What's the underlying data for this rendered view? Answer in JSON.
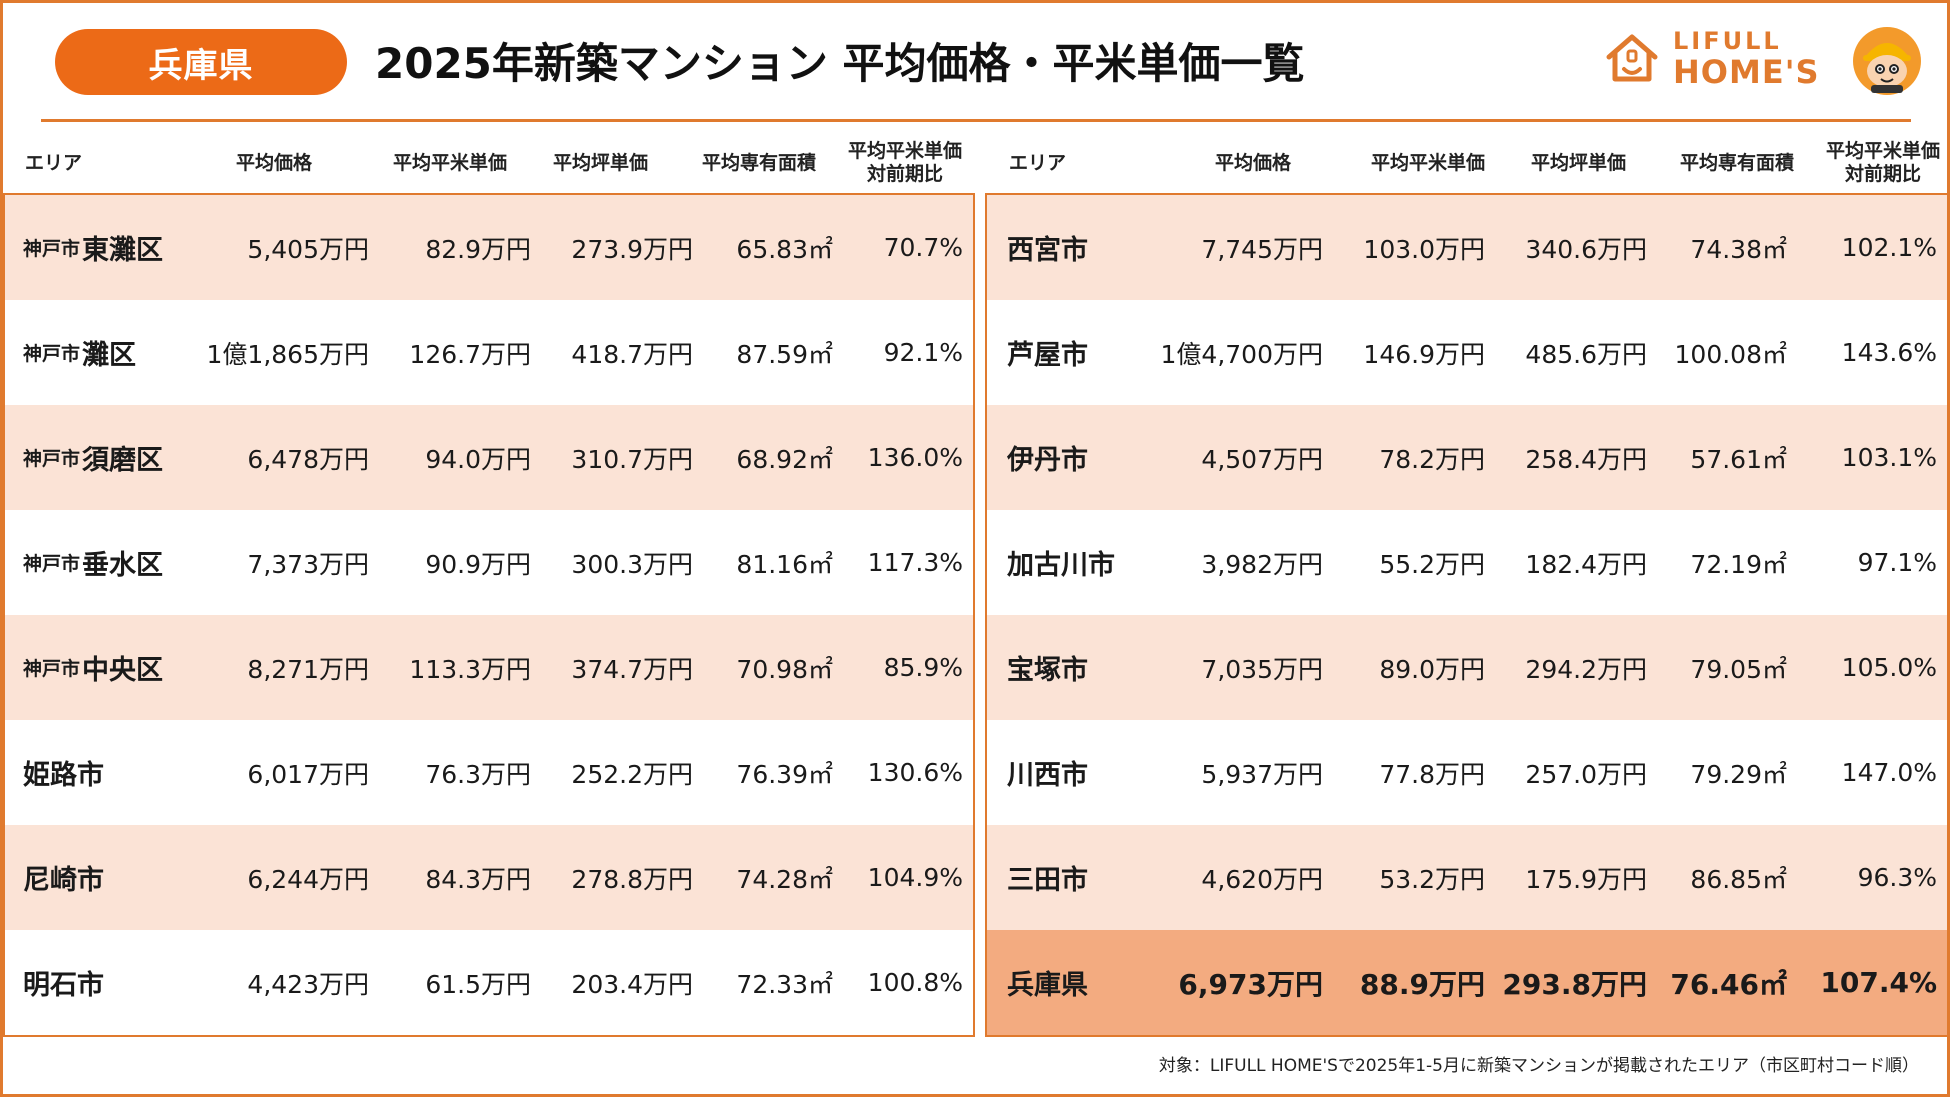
{
  "header": {
    "badge": "兵庫県",
    "title": "2025年新築マンション 平均価格・平米単価一覧",
    "logo_line1": "LIFULL",
    "logo_line2": "HOME'S"
  },
  "columns": [
    "エリア",
    "平均価格",
    "平均平米単価",
    "平均坪単価",
    "平均専有面積",
    "平均平米単価\n対前期比"
  ],
  "left_rows": [
    {
      "prefix": "神戸市",
      "area": "東灘区",
      "price": "5,405万円",
      "sqm": "82.9万円",
      "tsubo": "273.9万円",
      "size": "65.83㎡",
      "ratio": "70.7%",
      "shade": true
    },
    {
      "prefix": "神戸市",
      "area": "灘区",
      "price": "1億1,865万円",
      "sqm": "126.7万円",
      "tsubo": "418.7万円",
      "size": "87.59㎡",
      "ratio": "92.1%",
      "shade": false
    },
    {
      "prefix": "神戸市",
      "area": "須磨区",
      "price": "6,478万円",
      "sqm": "94.0万円",
      "tsubo": "310.7万円",
      "size": "68.92㎡",
      "ratio": "136.0%",
      "shade": true
    },
    {
      "prefix": "神戸市",
      "area": "垂水区",
      "price": "7,373万円",
      "sqm": "90.9万円",
      "tsubo": "300.3万円",
      "size": "81.16㎡",
      "ratio": "117.3%",
      "shade": false
    },
    {
      "prefix": "神戸市",
      "area": "中央区",
      "price": "8,271万円",
      "sqm": "113.3万円",
      "tsubo": "374.7万円",
      "size": "70.98㎡",
      "ratio": "85.9%",
      "shade": true
    },
    {
      "prefix": "",
      "area": "姫路市",
      "price": "6,017万円",
      "sqm": "76.3万円",
      "tsubo": "252.2万円",
      "size": "76.39㎡",
      "ratio": "130.6%",
      "shade": false
    },
    {
      "prefix": "",
      "area": "尼崎市",
      "price": "6,244万円",
      "sqm": "84.3万円",
      "tsubo": "278.8万円",
      "size": "74.28㎡",
      "ratio": "104.9%",
      "shade": true
    },
    {
      "prefix": "",
      "area": "明石市",
      "price": "4,423万円",
      "sqm": "61.5万円",
      "tsubo": "203.4万円",
      "size": "72.33㎡",
      "ratio": "100.8%",
      "shade": false
    }
  ],
  "right_rows": [
    {
      "area": "西宮市",
      "price": "7,745万円",
      "sqm": "103.0万円",
      "tsubo": "340.6万円",
      "size": "74.38㎡",
      "ratio": "102.1%",
      "shade": true
    },
    {
      "area": "芦屋市",
      "price": "1億4,700万円",
      "sqm": "146.9万円",
      "tsubo": "485.6万円",
      "size": "100.08㎡",
      "ratio": "143.6%",
      "shade": false
    },
    {
      "area": "伊丹市",
      "price": "4,507万円",
      "sqm": "78.2万円",
      "tsubo": "258.4万円",
      "size": "57.61㎡",
      "ratio": "103.1%",
      "shade": true
    },
    {
      "area": "加古川市",
      "price": "3,982万円",
      "sqm": "55.2万円",
      "tsubo": "182.4万円",
      "size": "72.19㎡",
      "ratio": "97.1%",
      "shade": false
    },
    {
      "area": "宝塚市",
      "price": "7,035万円",
      "sqm": "89.0万円",
      "tsubo": "294.2万円",
      "size": "79.05㎡",
      "ratio": "105.0%",
      "shade": true
    },
    {
      "area": "川西市",
      "price": "5,937万円",
      "sqm": "77.8万円",
      "tsubo": "257.0万円",
      "size": "79.29㎡",
      "ratio": "147.0%",
      "shade": false
    },
    {
      "area": "三田市",
      "price": "4,620万円",
      "sqm": "53.2万円",
      "tsubo": "175.9万円",
      "size": "86.85㎡",
      "ratio": "96.3%",
      "shade": true
    },
    {
      "area": "兵庫県",
      "price": "6,973万円",
      "sqm": "88.9万円",
      "tsubo": "293.8万円",
      "size": "76.46㎡",
      "ratio": "107.4%",
      "shade": false,
      "total": true
    }
  ],
  "footnote": "対象：LIFULL HOME'Sで2025年1-5月に新築マンションが掲載されたエリア（市区町村コード順）",
  "colors": {
    "accent": "#ec6a17",
    "border": "#e07a2e",
    "shade": "#fbe3d6",
    "total": "#f3ab80"
  },
  "icons": [
    "house-logo-icon",
    "mascot-icon"
  ]
}
